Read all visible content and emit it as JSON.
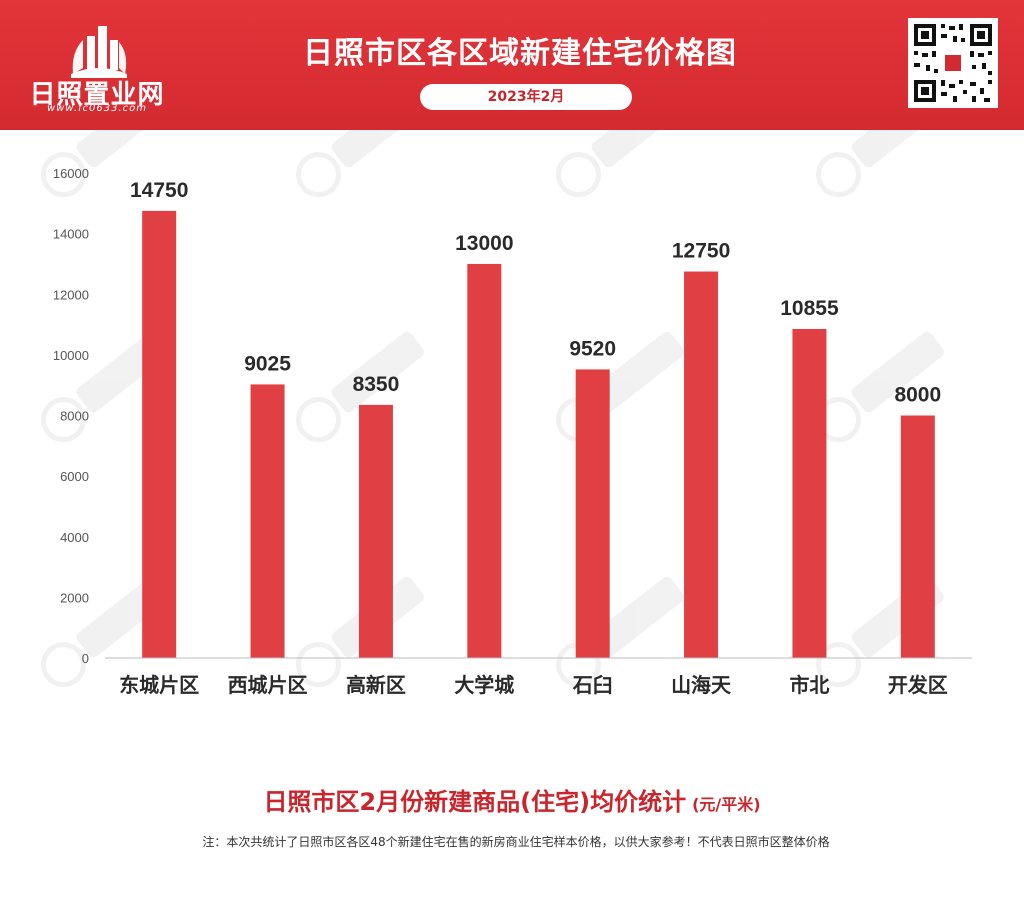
{
  "header": {
    "logo_text": "日照置业网",
    "logo_url": "www.fc0633.com",
    "title": "日照市区各区域新建住宅价格图",
    "date": "2023年2月"
  },
  "colors": {
    "header_red": "#d32a30",
    "bar_red": "#e04043",
    "title_red": "#c8262c"
  },
  "chart_data": {
    "type": "bar",
    "categories": [
      "东城片区",
      "西城片区",
      "高新区",
      "大学城",
      "石臼",
      "山海天",
      "市北",
      "开发区"
    ],
    "values": [
      14750,
      9025,
      8350,
      13000,
      9520,
      12750,
      10855,
      8000
    ],
    "ylim": [
      0,
      16000
    ],
    "yticks": [
      0,
      2000,
      4000,
      6000,
      8000,
      10000,
      12000,
      14000,
      16000
    ],
    "grid": false,
    "title": "日照市区2月份新建商品(住宅)均价统计",
    "unit": "(元/平米)"
  },
  "footnote": "注：本次共统计了日照市区各区48个新建住宅在售的新房商业住宅样本价格，以供大家参考！不代表日照市区整体价格"
}
